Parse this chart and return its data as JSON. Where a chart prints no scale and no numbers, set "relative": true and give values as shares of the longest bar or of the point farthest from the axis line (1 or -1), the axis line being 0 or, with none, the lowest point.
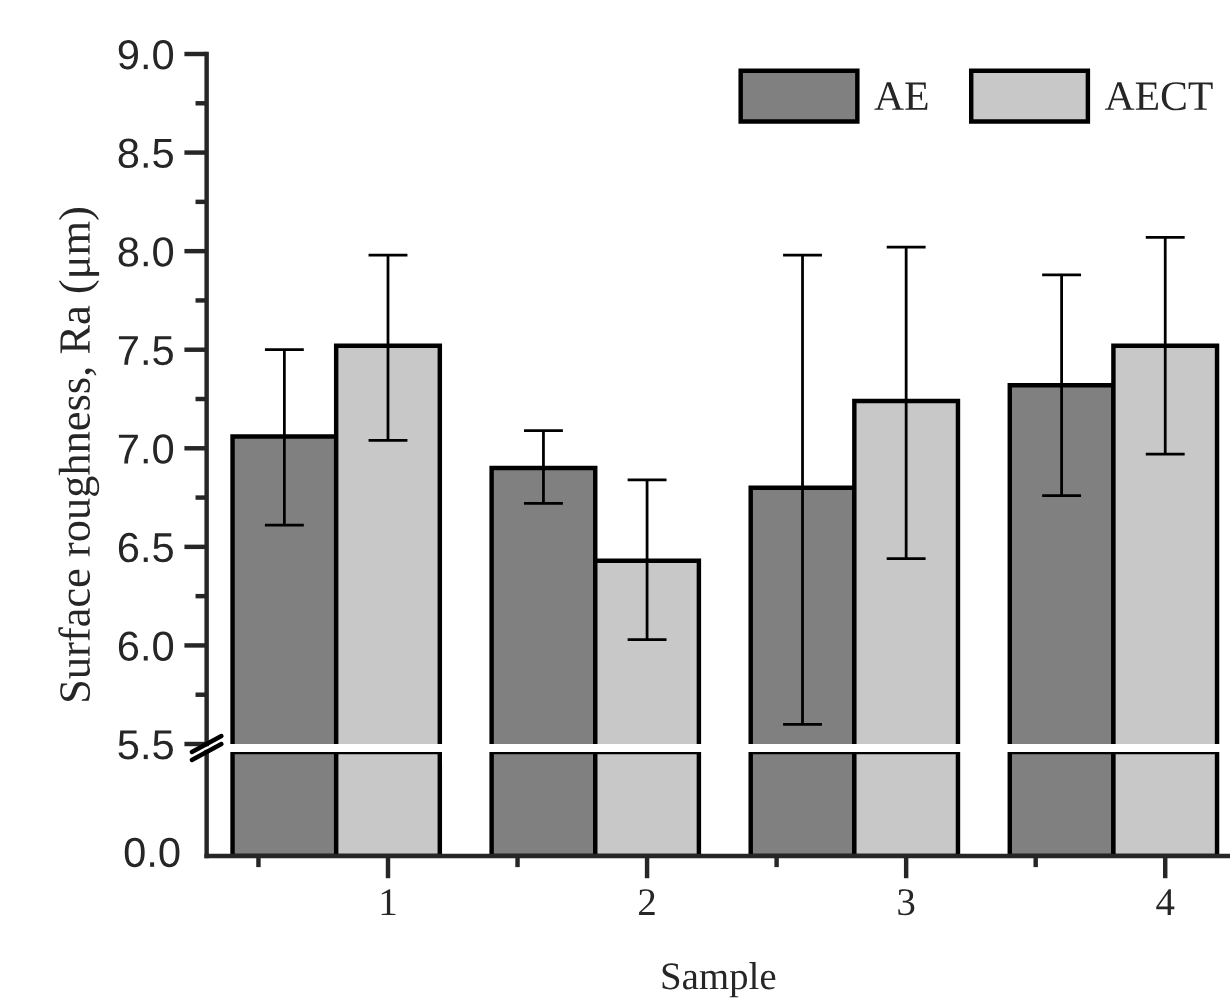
{
  "chart_data": [
    {
      "type": "bar",
      "ylabel": "Surface roughness, Ra (μm)",
      "categories": [
        "1",
        "2",
        "3",
        "4"
      ],
      "series": [
        {
          "name": "AE",
          "color": "#808080",
          "values": [
            7.06,
            6.9,
            6.8,
            7.32
          ],
          "errors": [
            [
              6.61,
              7.5
            ],
            [
              6.72,
              7.09
            ],
            [
              5.6,
              7.98
            ],
            [
              6.76,
              7.88
            ]
          ]
        },
        {
          "name": "AECT",
          "color": "#c8c8c8",
          "values": [
            7.52,
            6.43,
            7.24,
            7.52
          ],
          "errors": [
            [
              7.04,
              7.98
            ],
            [
              6.03,
              6.84
            ],
            [
              6.44,
              8.02
            ],
            [
              6.97,
              8.07
            ]
          ]
        }
      ],
      "ylim": [
        5.5,
        9.0
      ],
      "yticks": [
        5.5,
        {
          "value": 6,
          "label": "6.0"
        },
        6.5,
        {
          "value": 7,
          "label": "7.0"
        },
        7.5,
        {
          "value": 8,
          "label": "8.0"
        },
        8.5,
        {
          "value": 9,
          "label": "9.0"
        }
      ],
      "tick_labels": "y",
      "legend": "top right",
      "grid": false
    },
    {
      "type": "bar",
      "xlabel": "Sample",
      "categories": [
        "1",
        "2",
        "3",
        "4"
      ],
      "series": [
        {
          "color": "#808080",
          "values": [
            1,
            1,
            1,
            1
          ]
        },
        {
          "color": "#c8c8c8",
          "values": [
            1,
            1,
            1,
            1
          ]
        }
      ],
      "relative": true,
      "annotations": [
        "0.0"
      ],
      "grid": false
    }
  ]
}
